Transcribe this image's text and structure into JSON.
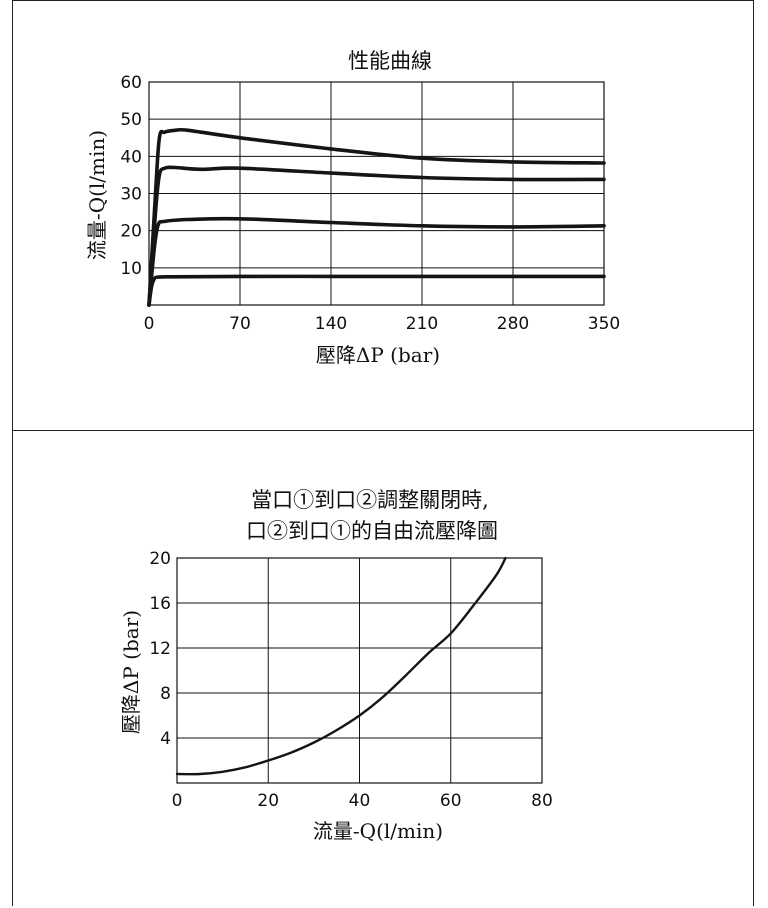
{
  "chart_data": [
    {
      "type": "line",
      "title": "性能曲線",
      "xlabel": "壓降ΔP (bar)",
      "ylabel": "流量-Q(l/min)",
      "xlim": [
        0,
        350
      ],
      "ylim": [
        0,
        60
      ],
      "x_ticks": [
        "0",
        "70",
        "140",
        "210",
        "280",
        "350"
      ],
      "y_ticks": [
        "10",
        "20",
        "30",
        "40",
        "50",
        "60"
      ],
      "grid": true,
      "series": [
        {
          "x": [
            0,
            5,
            8,
            12,
            20,
            30,
            70,
            140,
            210,
            280,
            350
          ],
          "y": [
            0,
            30,
            45,
            46.5,
            47,
            47,
            45,
            42,
            39.5,
            38.5,
            38.2
          ]
        },
        {
          "x": [
            0,
            5,
            8,
            12,
            20,
            40,
            70,
            140,
            210,
            280,
            350
          ],
          "y": [
            0,
            25,
            35,
            36.8,
            37,
            36.5,
            36.8,
            35.5,
            34.3,
            33.8,
            33.8
          ]
        },
        {
          "x": [
            0,
            4,
            7,
            12,
            30,
            70,
            140,
            210,
            280,
            350
          ],
          "y": [
            0,
            15,
            21.5,
            22.5,
            23,
            23.2,
            22.2,
            21.3,
            21,
            21.3
          ]
        },
        {
          "x": [
            0,
            2,
            4,
            7,
            20,
            70,
            140,
            210,
            280,
            350
          ],
          "y": [
            0,
            5,
            7,
            7.5,
            7.6,
            7.7,
            7.7,
            7.7,
            7.7,
            7.7
          ]
        }
      ]
    },
    {
      "type": "line",
      "title": [
        "當口①到口②調整關閉時,",
        "口②到口①的自由流壓降圖"
      ],
      "xlabel": "流量-Q(l/min)",
      "ylabel": "壓降ΔP (bar)",
      "xlim": [
        0,
        80
      ],
      "ylim": [
        0,
        20
      ],
      "x_ticks": [
        "0",
        "20",
        "40",
        "60",
        "80"
      ],
      "y_ticks": [
        "4",
        "8",
        "12",
        "16",
        "20"
      ],
      "grid": true,
      "series": [
        {
          "x": [
            0,
            5,
            10,
            15,
            20,
            25,
            30,
            35,
            40,
            45,
            50,
            55,
            60,
            65,
            70,
            72
          ],
          "y": [
            0.8,
            0.8,
            1.0,
            1.4,
            2.0,
            2.7,
            3.6,
            4.7,
            6.0,
            7.6,
            9.5,
            11.5,
            13.3,
            15.8,
            18.5,
            20
          ]
        }
      ]
    }
  ]
}
